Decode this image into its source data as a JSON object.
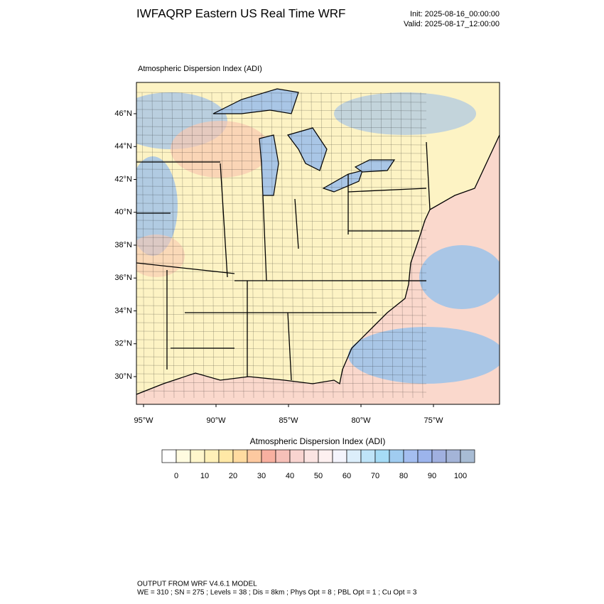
{
  "header": {
    "title": "IWFAQRP Eastern US Real Time WRF",
    "init": "Init: 2025-08-16_00:00:00",
    "valid": "Valid: 2025-08-17_12:00:00"
  },
  "plot_title": "Atmospheric Dispersion Index   (ADI)",
  "lat_labels": [
    "46°N",
    "44°N",
    "42°N",
    "40°N",
    "38°N",
    "36°N",
    "34°N",
    "32°N",
    "30°N"
  ],
  "lon_labels": [
    "95°W",
    "90°W",
    "85°W",
    "80°W",
    "75°W"
  ],
  "colorbar": {
    "title": "Atmospheric Dispersion Index  (ADI)",
    "ticks": [
      "0",
      "10",
      "20",
      "30",
      "40",
      "50",
      "60",
      "70",
      "80",
      "90",
      "100"
    ],
    "colors": [
      "#ffffff",
      "#fffbe0",
      "#fff6cc",
      "#fff0b8",
      "#ffe8a6",
      "#ffdba0",
      "#fdc9a0",
      "#f8b0a0",
      "#f6c0b8",
      "#f8d4d0",
      "#fbe4e2",
      "#fdf0f0",
      "#f4f4fc",
      "#dceefb",
      "#bfe4f8",
      "#a6dcf6",
      "#a0ccf0",
      "#a4bef0",
      "#9cb4ec",
      "#a0b0e0",
      "#a4b4d8",
      "#a8bcd4"
    ]
  },
  "footer": {
    "line1": "OUTPUT FROM WRF V4.6.1 MODEL",
    "line2": "WE = 310 ; SN = 275 ; Levels = 38 ; Dis = 8km ; Phys Opt = 8 ; PBL Opt = 1 ; Cu Opt = 3"
  }
}
